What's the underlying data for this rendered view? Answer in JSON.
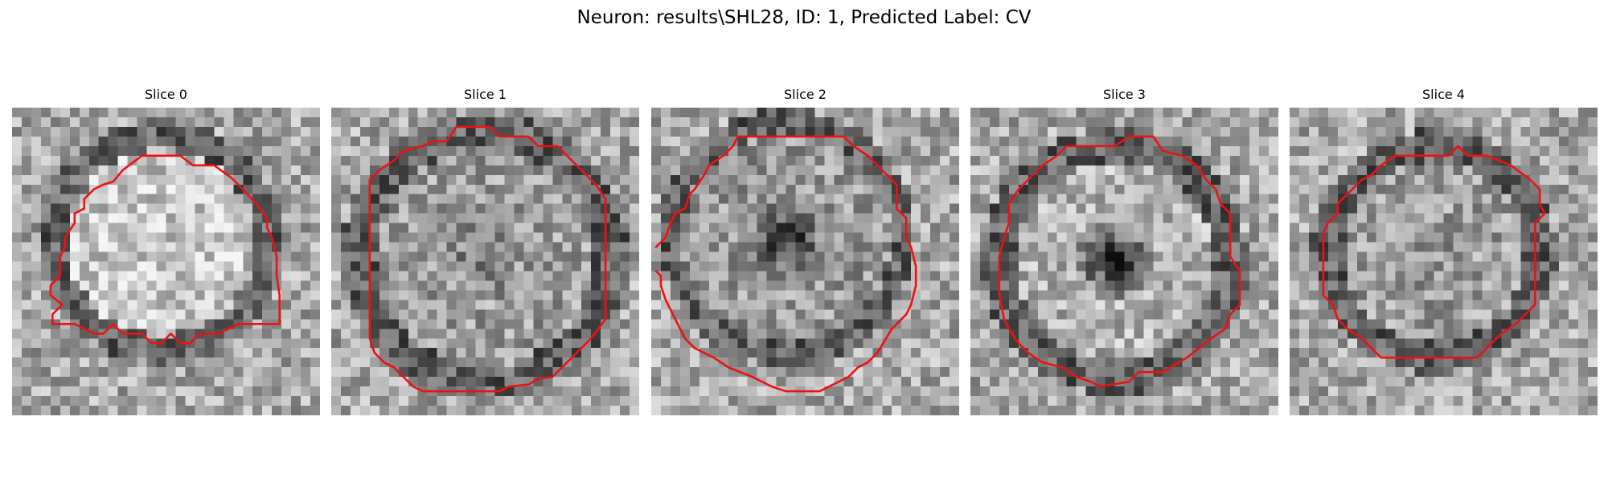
{
  "figure": {
    "suptitle": "Neuron: results\\SHL28, ID: 1, Predicted Label: CV"
  },
  "colors": {
    "contour": "#ee1111",
    "background": "#ffffff"
  },
  "chart_data": {
    "type": "image-grid",
    "grid_cells": 32,
    "colormap": "gray",
    "panels": [
      {
        "title": "Slice 0"
      },
      {
        "title": "Slice 1"
      },
      {
        "title": "Slice 2"
      },
      {
        "title": "Slice 3"
      },
      {
        "title": "Slice 4"
      }
    ]
  }
}
